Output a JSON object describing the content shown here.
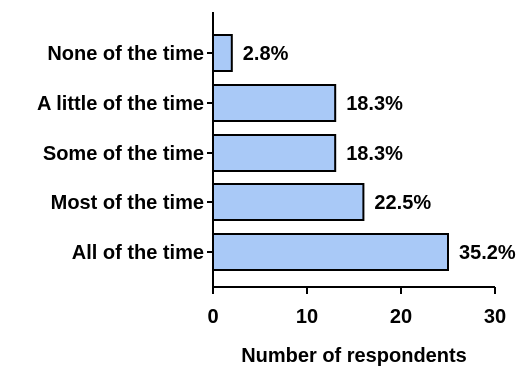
{
  "chart_data": {
    "type": "bar",
    "orientation": "horizontal",
    "categories": [
      "None of the time",
      "A little of the time",
      "Some of the time",
      "Most of the time",
      "All of the time"
    ],
    "values": [
      2,
      13,
      13,
      16,
      25
    ],
    "data_labels": [
      "2.8%",
      "18.3%",
      "18.3%",
      "22.5%",
      "35.2%"
    ],
    "xlabel": "Number of respondents",
    "xlim": [
      0,
      30
    ],
    "xticks": [
      "0",
      "10",
      "20",
      "30"
    ],
    "grid": false,
    "bar_color": "#a9c9f7",
    "bar_edge_color": "#000000"
  }
}
